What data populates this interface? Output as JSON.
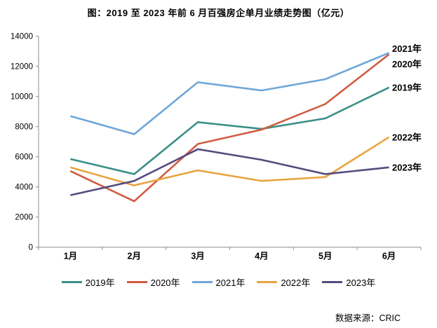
{
  "title": "图：2019 至 2023 年前 6 月百强房企单月业绩走势图（亿元）",
  "source": "数据来源：CRIC",
  "chart_data": {
    "type": "line",
    "title": "图：2019 至 2023 年前 6 月百强房企单月业绩走势图（亿元）",
    "unit": "亿元",
    "categories": [
      "1月",
      "2月",
      "3月",
      "4月",
      "5月",
      "6月"
    ],
    "series": [
      {
        "name": "2019年",
        "color": "#3A8F87",
        "values": [
          5850,
          4850,
          8300,
          7850,
          8550,
          10600
        ]
      },
      {
        "name": "2020年",
        "color": "#D15B42",
        "values": [
          5050,
          3050,
          6850,
          7800,
          9500,
          12800
        ]
      },
      {
        "name": "2021年",
        "color": "#6FA7D8",
        "values": [
          8700,
          7500,
          10950,
          10400,
          11150,
          12900
        ]
      },
      {
        "name": "2022年",
        "color": "#E9A440",
        "values": [
          5300,
          4100,
          5100,
          4400,
          4650,
          7300
        ]
      },
      {
        "name": "2023年",
        "color": "#564A7E",
        "values": [
          3450,
          4400,
          6500,
          5800,
          4850,
          5300
        ]
      }
    ],
    "ylim": [
      0,
      14000
    ],
    "ytick_step": 2000,
    "grid": false,
    "legend_position": "bottom",
    "end_labels": true,
    "axis_color": "#8c8c8c"
  }
}
